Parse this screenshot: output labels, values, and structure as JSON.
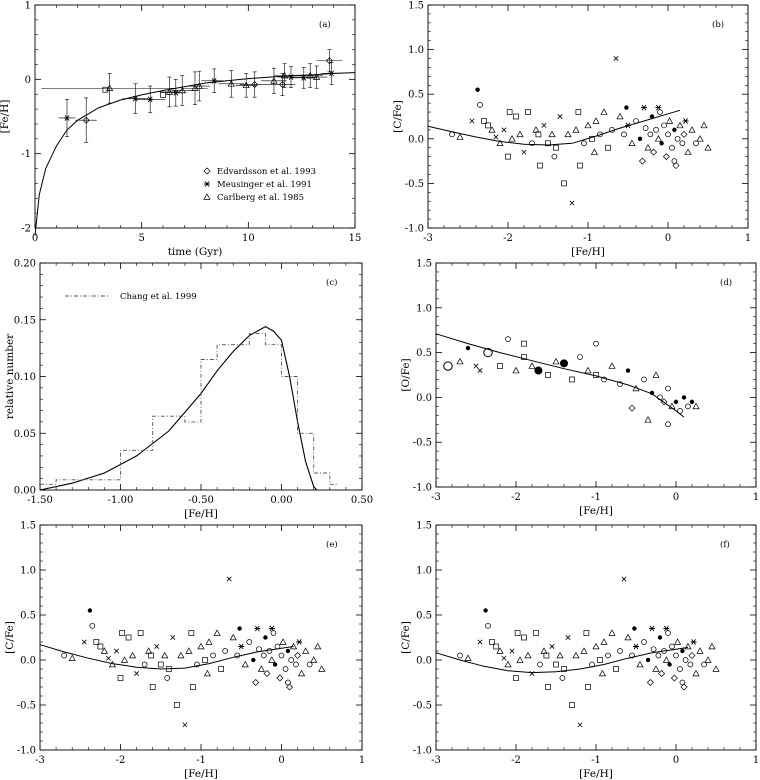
{
  "chart_data": [
    {
      "id": "a",
      "type": "scatter",
      "panel_label": "(a)",
      "xlabel": "time (Gyr)",
      "ylabel": "[Fe/H]",
      "xlim": [
        0,
        15
      ],
      "ylim": [
        -2,
        1
      ],
      "xticks": [
        0,
        5,
        10,
        15
      ],
      "yticks": [
        -2,
        -1,
        0,
        1
      ],
      "legend": {
        "placement": "bottom-right",
        "entries": [
          {
            "marker": "diamond",
            "label": "Edvardsson et al. 1993"
          },
          {
            "marker": "asterisk",
            "label": "Meusinger et al. 1991"
          },
          {
            "marker": "triangle",
            "label": "Carlberg et al. 1985"
          }
        ]
      },
      "series": [
        {
          "marker": "asterisk",
          "points": [
            [
              1.5,
              -0.52,
              0.4,
              0.25
            ],
            [
              4.7,
              -0.26,
              0.6,
              0.2
            ],
            [
              5.4,
              -0.27,
              0.7,
              0.18
            ],
            [
              6.6,
              -0.18,
              0.5,
              0.18
            ],
            [
              8.4,
              -0.02,
              0.6,
              0.16
            ],
            [
              12.0,
              0.03,
              0.6,
              0.14
            ],
            [
              12.6,
              0.02,
              0.6,
              0.14
            ],
            [
              13.9,
              0.08,
              0.5,
              0.15
            ]
          ]
        },
        {
          "marker": "diamond",
          "points": [
            [
              2.4,
              -0.55,
              0.5,
              0.3
            ],
            [
              10.3,
              -0.07,
              0.7,
              0.17
            ],
            [
              11.6,
              -0.07,
              0.6,
              0.15
            ],
            [
              13.8,
              0.25,
              0.6,
              0.15
            ]
          ]
        },
        {
          "marker": "triangle",
          "points": [
            [
              3.5,
              -0.12,
              3.2,
              0.2
            ],
            [
              6.3,
              -0.17,
              0.5,
              0.2
            ],
            [
              6.9,
              -0.15,
              0.5,
              0.2
            ],
            [
              7.5,
              -0.12,
              0.6,
              0.22
            ],
            [
              7.7,
              -0.09,
              0.5,
              0.2
            ],
            [
              9.2,
              -0.06,
              0.6,
              0.18
            ],
            [
              9.9,
              -0.08,
              0.5,
              0.16
            ],
            [
              11.2,
              -0.02,
              0.6,
              0.17
            ],
            [
              11.7,
              0.05,
              0.5,
              0.16
            ],
            [
              12.9,
              0.05,
              0.6,
              0.16
            ],
            [
              13.2,
              0.03,
              0.5,
              0.15
            ]
          ]
        },
        {
          "marker": "square",
          "points": [
            [
              3.3,
              -0.14,
              0,
              0
            ],
            [
              6.0,
              -0.21,
              0,
              0
            ]
          ]
        }
      ],
      "model_curve": {
        "x": [
          0,
          0.2,
          0.5,
          1,
          1.5,
          2,
          3,
          4,
          5,
          6,
          7,
          8,
          9,
          10,
          11,
          12,
          13,
          14,
          15
        ],
        "y": [
          -2.1,
          -1.55,
          -1.2,
          -0.9,
          -0.68,
          -0.55,
          -0.38,
          -0.28,
          -0.21,
          -0.15,
          -0.1,
          -0.05,
          -0.02,
          0.01,
          0.03,
          0.05,
          0.06,
          0.08,
          0.09
        ]
      }
    },
    {
      "id": "b",
      "type": "scatter",
      "panel_label": "(b)",
      "xlabel": "[Fe/H]",
      "ylabel": "[C/Fe]",
      "xlim": [
        -3,
        1
      ],
      "ylim": [
        -1,
        1.5
      ],
      "xticks": [
        -3,
        -2,
        -1,
        0,
        1
      ],
      "yticks": [
        -1.0,
        -0.5,
        0.0,
        0.5,
        1.0,
        1.5
      ],
      "model_curve": {
        "x": [
          -3,
          -2.7,
          -2.4,
          -2.1,
          -1.8,
          -1.5,
          -1.2,
          -0.9,
          -0.6,
          -0.3,
          0,
          0.15
        ],
        "y": [
          0.14,
          0.08,
          0.02,
          -0.03,
          -0.06,
          -0.07,
          -0.05,
          0.03,
          0.12,
          0.2,
          0.28,
          0.32
        ]
      }
    },
    {
      "id": "c",
      "type": "line",
      "panel_label": "(c)",
      "xlabel": "[Fe/H]",
      "ylabel": "relative number",
      "xlim": [
        -1.5,
        0.5
      ],
      "ylim": [
        0,
        0.2
      ],
      "xticks": [
        -1.5,
        -1.0,
        -0.5,
        0.0,
        0.5
      ],
      "yticks": [
        0.0,
        0.05,
        0.1,
        0.15,
        0.2
      ],
      "legend": {
        "placement": "top-left",
        "entries": [
          {
            "style": "dash-dot",
            "label": "Chang et al. 1999"
          }
        ]
      },
      "series": [
        {
          "style": "solid",
          "x": [
            -1.5,
            -1.3,
            -1.1,
            -0.9,
            -0.7,
            -0.5,
            -0.4,
            -0.3,
            -0.2,
            -0.1,
            -0.05,
            0,
            0.05,
            0.1,
            0.15,
            0.2,
            0.22
          ],
          "y": [
            0.0,
            0.006,
            0.015,
            0.03,
            0.052,
            0.085,
            0.105,
            0.122,
            0.136,
            0.144,
            0.14,
            0.132,
            0.1,
            0.06,
            0.025,
            0.003,
            0.0
          ]
        },
        {
          "style": "dash-dot-step",
          "x": [
            -1.5,
            -1.4,
            -1.3,
            -1.2,
            -1.1,
            -1.0,
            -0.9,
            -0.8,
            -0.7,
            -0.6,
            -0.5,
            -0.4,
            -0.3,
            -0.2,
            -0.1,
            0.0,
            0.1,
            0.2,
            0.3,
            0.35
          ],
          "y": [
            0.005,
            0.009,
            0.009,
            0.009,
            0.009,
            0.035,
            0.035,
            0.065,
            0.065,
            0.06,
            0.115,
            0.128,
            0.128,
            0.138,
            0.128,
            0.1,
            0.05,
            0.015,
            0.005,
            0.005
          ]
        }
      ]
    },
    {
      "id": "d",
      "type": "scatter",
      "panel_label": "(d)",
      "xlabel": "[Fe/H]",
      "ylabel": "[O/Fe]",
      "xlim": [
        -3,
        1
      ],
      "ylim": [
        -1,
        1.5
      ],
      "xticks": [
        -3,
        -2,
        -1,
        0,
        1
      ],
      "yticks": [
        -1.0,
        -0.5,
        0.0,
        0.5,
        1.0,
        1.5
      ],
      "model_curve": {
        "x": [
          -3,
          -2.6,
          -2.2,
          -1.8,
          -1.4,
          -1.0,
          -0.6,
          -0.3,
          0,
          0.1
        ],
        "y": [
          0.71,
          0.6,
          0.5,
          0.41,
          0.32,
          0.24,
          0.14,
          0.04,
          -0.15,
          -0.22
        ]
      }
    },
    {
      "id": "e",
      "type": "scatter",
      "panel_label": "(e)",
      "xlabel": "[Fe/H]",
      "ylabel": "[C/Fe]",
      "xlim": [
        -3,
        1
      ],
      "ylim": [
        -1,
        1.5
      ],
      "xticks": [
        -3,
        -2,
        -1,
        0,
        1
      ],
      "yticks": [
        -1.0,
        -0.5,
        0.0,
        0.5,
        1.0,
        1.5
      ],
      "model_curve": {
        "x": [
          -3,
          -2.7,
          -2.4,
          -2.1,
          -1.8,
          -1.5,
          -1.2,
          -0.9,
          -0.6,
          -0.3,
          0,
          0.15
        ],
        "y": [
          0.17,
          0.09,
          0.02,
          -0.04,
          -0.08,
          -0.1,
          -0.09,
          -0.04,
          0.03,
          0.09,
          0.13,
          0.15
        ]
      }
    },
    {
      "id": "f",
      "type": "scatter",
      "panel_label": "(f)",
      "xlabel": "[Fe/H]",
      "ylabel": "[C/Fe]",
      "xlim": [
        -3,
        1
      ],
      "ylim": [
        -1,
        1.5
      ],
      "xticks": [
        -3,
        -2,
        -1,
        0,
        1
      ],
      "yticks": [
        -1.0,
        -0.5,
        0.0,
        0.5,
        1.0,
        1.5
      ],
      "model_curve": {
        "x": [
          -3,
          -2.7,
          -2.4,
          -2.1,
          -1.8,
          -1.5,
          -1.2,
          -0.9,
          -0.6,
          -0.3,
          0,
          0.15
        ],
        "y": [
          0.08,
          0.0,
          -0.07,
          -0.12,
          -0.14,
          -0.13,
          -0.1,
          -0.05,
          0.02,
          0.08,
          0.12,
          0.14
        ]
      }
    }
  ],
  "scatter_cloud": {
    "note_markers": [
      "triangle",
      "square",
      "circle",
      "filled-circle",
      "cross",
      "asterisk",
      "diamond"
    ],
    "CFe": [
      [
        -2.7,
        0.05,
        "circle"
      ],
      [
        -2.6,
        0.02,
        "triangle"
      ],
      [
        -2.45,
        0.2,
        "cross"
      ],
      [
        -2.38,
        0.55,
        "filled-circle"
      ],
      [
        -2.35,
        0.38,
        "circle"
      ],
      [
        -2.3,
        0.2,
        "square"
      ],
      [
        -2.25,
        0.15,
        "square"
      ],
      [
        -2.2,
        0.1,
        "triangle"
      ],
      [
        -2.15,
        0.02,
        "cross"
      ],
      [
        -2.1,
        -0.05,
        "triangle"
      ],
      [
        -2.05,
        0.1,
        "cross"
      ],
      [
        -2.0,
        -0.2,
        "square"
      ],
      [
        -1.95,
        0.0,
        "triangle"
      ],
      [
        -1.9,
        0.25,
        "square"
      ],
      [
        -1.85,
        0.05,
        "triangle"
      ],
      [
        -1.8,
        -0.15,
        "cross"
      ],
      [
        -1.75,
        0.3,
        "square"
      ],
      [
        -1.7,
        -0.05,
        "circle"
      ],
      [
        -1.65,
        0.1,
        "triangle"
      ],
      [
        -1.6,
        -0.3,
        "square"
      ],
      [
        -1.55,
        0.15,
        "cross"
      ],
      [
        -1.5,
        -0.05,
        "square"
      ],
      [
        -1.45,
        0.05,
        "triangle"
      ],
      [
        -1.4,
        -0.1,
        "square"
      ],
      [
        -1.35,
        0.25,
        "cross"
      ],
      [
        -1.3,
        -0.5,
        "square"
      ],
      [
        -1.25,
        0.05,
        "triangle"
      ],
      [
        -1.2,
        -0.72,
        "cross"
      ],
      [
        -1.15,
        0.1,
        "triangle"
      ],
      [
        -1.1,
        -0.3,
        "square"
      ],
      [
        -1.05,
        -0.05,
        "circle"
      ],
      [
        -1.0,
        0.15,
        "triangle"
      ],
      [
        -0.95,
        0.0,
        "square"
      ],
      [
        -0.9,
        0.2,
        "triangle"
      ],
      [
        -0.85,
        0.05,
        "circle"
      ],
      [
        -0.8,
        0.3,
        "triangle"
      ],
      [
        -0.75,
        -0.1,
        "square"
      ],
      [
        -0.7,
        0.1,
        "circle"
      ],
      [
        -0.65,
        0.9,
        "cross"
      ],
      [
        -0.6,
        0.25,
        "triangle"
      ],
      [
        -0.55,
        0.05,
        "circle"
      ],
      [
        -0.5,
        0.15,
        "asterisk"
      ],
      [
        -0.45,
        -0.05,
        "triangle"
      ],
      [
        -0.4,
        0.2,
        "circle"
      ],
      [
        -0.35,
        0.0,
        "filled-circle"
      ],
      [
        -0.3,
        0.35,
        "asterisk"
      ],
      [
        -0.28,
        0.12,
        "circle"
      ],
      [
        -0.25,
        -0.1,
        "triangle"
      ],
      [
        -0.22,
        0.05,
        "circle"
      ],
      [
        -0.2,
        0.25,
        "filled-circle"
      ],
      [
        -0.18,
        -0.15,
        "diamond"
      ],
      [
        -0.15,
        0.1,
        "circle"
      ],
      [
        -0.12,
        0.0,
        "triangle"
      ],
      [
        -0.1,
        0.3,
        "circle"
      ],
      [
        -0.08,
        -0.05,
        "filled-circle"
      ],
      [
        -0.05,
        0.15,
        "circle"
      ],
      [
        -0.02,
        -0.2,
        "diamond"
      ],
      [
        0.0,
        0.05,
        "circle"
      ],
      [
        0.02,
        0.2,
        "triangle"
      ],
      [
        0.05,
        -0.1,
        "circle"
      ],
      [
        0.08,
        0.1,
        "filled-circle"
      ],
      [
        0.1,
        -0.3,
        "diamond"
      ],
      [
        0.12,
        0.0,
        "circle"
      ],
      [
        0.15,
        0.15,
        "triangle"
      ],
      [
        0.18,
        -0.05,
        "circle"
      ],
      [
        0.2,
        0.05,
        "diamond"
      ],
      [
        0.25,
        -0.15,
        "triangle"
      ],
      [
        0.3,
        0.1,
        "triangle"
      ],
      [
        0.35,
        -0.05,
        "circle"
      ],
      [
        0.4,
        0.0,
        "triangle"
      ],
      [
        0.45,
        0.15,
        "triangle"
      ],
      [
        0.5,
        -0.1,
        "triangle"
      ],
      [
        -1.98,
        0.3,
        "square"
      ],
      [
        -1.62,
        0.05,
        "square"
      ],
      [
        -1.42,
        -0.2,
        "circle"
      ],
      [
        -1.12,
        0.3,
        "square"
      ],
      [
        -0.92,
        -0.15,
        "triangle"
      ],
      [
        -0.52,
        0.35,
        "filled-circle"
      ],
      [
        -0.32,
        -0.25,
        "diamond"
      ],
      [
        -0.12,
        0.35,
        "asterisk"
      ],
      [
        0.08,
        -0.25,
        "circle"
      ],
      [
        0.22,
        0.2,
        "asterisk"
      ]
    ],
    "OFe": [
      [
        -2.85,
        0.35,
        "big-circle"
      ],
      [
        -2.7,
        0.4,
        "triangle"
      ],
      [
        -2.6,
        0.55,
        "filled-circle"
      ],
      [
        -2.45,
        0.3,
        "cross"
      ],
      [
        -2.35,
        0.5,
        "big-circle"
      ],
      [
        -2.2,
        0.35,
        "square"
      ],
      [
        -2.1,
        0.65,
        "circle"
      ],
      [
        -2.0,
        0.3,
        "triangle"
      ],
      [
        -1.9,
        0.45,
        "square"
      ],
      [
        -1.8,
        0.35,
        "triangle"
      ],
      [
        -1.72,
        0.3,
        "big-filled-circle"
      ],
      [
        -1.6,
        0.25,
        "square"
      ],
      [
        -1.5,
        0.4,
        "triangle"
      ],
      [
        -1.4,
        0.38,
        "big-filled-circle"
      ],
      [
        -1.3,
        0.2,
        "square"
      ],
      [
        -1.2,
        0.45,
        "circle"
      ],
      [
        -1.1,
        0.3,
        "triangle"
      ],
      [
        -1.0,
        0.25,
        "square"
      ],
      [
        -0.9,
        0.2,
        "circle"
      ],
      [
        -0.8,
        0.35,
        "triangle"
      ],
      [
        -0.7,
        0.15,
        "circle"
      ],
      [
        -0.6,
        0.3,
        "filled-circle"
      ],
      [
        -0.5,
        0.1,
        "triangle"
      ],
      [
        -0.4,
        0.2,
        "circle"
      ],
      [
        -0.3,
        0.05,
        "filled-circle"
      ],
      [
        -0.25,
        0.25,
        "triangle"
      ],
      [
        -0.2,
        0.0,
        "circle"
      ],
      [
        -0.15,
        -0.05,
        "diamond"
      ],
      [
        -0.1,
        0.1,
        "circle"
      ],
      [
        -0.05,
        -0.1,
        "triangle"
      ],
      [
        0.0,
        -0.05,
        "filled-circle"
      ],
      [
        0.05,
        -0.15,
        "circle"
      ],
      [
        0.1,
        0.0,
        "filled-circle"
      ],
      [
        0.15,
        -0.1,
        "circle"
      ],
      [
        0.2,
        -0.05,
        "filled-circle"
      ],
      [
        0.25,
        -0.1,
        "triangle"
      ],
      [
        -1.0,
        0.6,
        "circle"
      ],
      [
        -1.9,
        0.6,
        "square"
      ],
      [
        -2.5,
        0.35,
        "cross"
      ],
      [
        -0.55,
        -0.12,
        "diamond"
      ],
      [
        -0.35,
        -0.25,
        "triangle"
      ],
      [
        -0.1,
        -0.3,
        "circle"
      ]
    ]
  }
}
